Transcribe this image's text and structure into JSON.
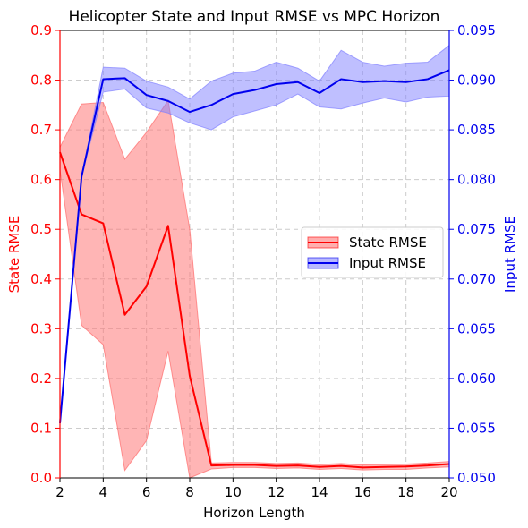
{
  "chart_data": {
    "type": "line",
    "title": "Helicopter State and Input RMSE vs MPC Horizon",
    "xlabel": "Horizon Length",
    "ylabel_left": "State RMSE",
    "ylabel_right": "Input RMSE",
    "xlim": [
      2,
      20
    ],
    "ylim_left": [
      0,
      0.9
    ],
    "ylim_right": [
      0.05,
      0.095
    ],
    "xticks": [
      "2",
      "4",
      "6",
      "8",
      "10",
      "12",
      "14",
      "16",
      "18",
      "20"
    ],
    "yticks_left": [
      "0.0",
      "0.1",
      "0.2",
      "0.3",
      "0.4",
      "0.5",
      "0.6",
      "0.7",
      "0.8",
      "0.9"
    ],
    "yticks_right": [
      "0.050",
      "0.055",
      "0.060",
      "0.065",
      "0.070",
      "0.075",
      "0.080",
      "0.085",
      "0.090",
      "0.095"
    ],
    "grid": true,
    "legend_position": "center-right",
    "x": [
      2,
      3,
      4,
      5,
      6,
      7,
      8,
      9,
      10,
      11,
      12,
      13,
      14,
      15,
      16,
      17,
      18,
      19,
      20
    ],
    "series": [
      {
        "name": "State RMSE",
        "axis": "left",
        "color": "#ff0000",
        "band_color": "#ff6b6b",
        "values": [
          0.655,
          0.53,
          0.512,
          0.328,
          0.385,
          0.507,
          0.205,
          0.025,
          0.026,
          0.026,
          0.024,
          0.025,
          0.022,
          0.024,
          0.021,
          0.022,
          0.023,
          0.025,
          0.028
        ],
        "lower": [
          0.62,
          0.307,
          0.268,
          0.015,
          0.075,
          0.255,
          0.0,
          0.018,
          0.021,
          0.021,
          0.019,
          0.02,
          0.017,
          0.019,
          0.016,
          0.017,
          0.017,
          0.02,
          0.022
        ],
        "upper": [
          0.665,
          0.752,
          0.755,
          0.641,
          0.695,
          0.759,
          0.5,
          0.03,
          0.031,
          0.031,
          0.029,
          0.03,
          0.027,
          0.029,
          0.026,
          0.027,
          0.028,
          0.03,
          0.033
        ]
      },
      {
        "name": "Input RMSE",
        "axis": "right",
        "color": "#0000ee",
        "band_color": "#8080ff",
        "values": [
          0.0555,
          0.0803,
          0.0901,
          0.0902,
          0.0885,
          0.0879,
          0.0868,
          0.0875,
          0.0886,
          0.089,
          0.0896,
          0.0898,
          0.0887,
          0.0901,
          0.0898,
          0.0899,
          0.0898,
          0.0901,
          0.091
        ],
        "lower": [
          0.0555,
          0.0803,
          0.0888,
          0.0891,
          0.0872,
          0.0867,
          0.0857,
          0.085,
          0.0863,
          0.0869,
          0.0875,
          0.0886,
          0.0873,
          0.0871,
          0.0877,
          0.0882,
          0.0878,
          0.0883,
          0.0884
        ],
        "upper": [
          0.0555,
          0.0803,
          0.0913,
          0.0912,
          0.0899,
          0.0893,
          0.0881,
          0.0899,
          0.0907,
          0.0909,
          0.0918,
          0.0912,
          0.0899,
          0.093,
          0.0918,
          0.0914,
          0.0917,
          0.0918,
          0.0935
        ]
      }
    ]
  }
}
